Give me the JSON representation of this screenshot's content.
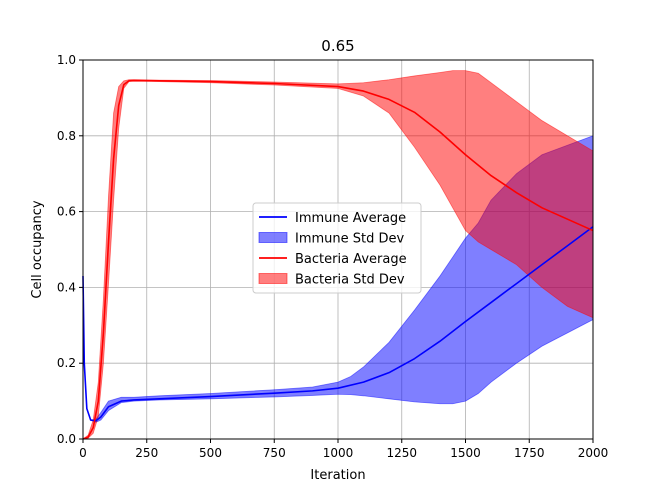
{
  "chart_data": {
    "type": "line",
    "title": "0.65",
    "xlabel": "Iteration",
    "ylabel": "Cell occupancy",
    "xlim": [
      0,
      2000
    ],
    "ylim": [
      0,
      1.0
    ],
    "xticks": [
      0,
      250,
      500,
      750,
      1000,
      1250,
      1500,
      1750,
      2000
    ],
    "yticks": [
      0.0,
      0.2,
      0.4,
      0.6,
      0.8,
      1.0
    ],
    "xtick_labels": [
      "0",
      "250",
      "500",
      "750",
      "1000",
      "1250",
      "1500",
      "1750",
      "2000"
    ],
    "ytick_labels": [
      "0.0",
      "0.2",
      "0.4",
      "0.6",
      "0.8",
      "1.0"
    ],
    "grid": true,
    "legend_position": "center-right",
    "legend": [
      "Immune Average",
      "Immune Std Dev",
      "Bacteria Average",
      "Bacteria Std Dev"
    ],
    "series": [
      {
        "name": "Immune Average",
        "kind": "line",
        "color": "#0000ff",
        "x": [
          0,
          5,
          15,
          30,
          50,
          70,
          100,
          150,
          200,
          300,
          500,
          750,
          900,
          1000,
          1100,
          1200,
          1300,
          1400,
          1500,
          1600,
          1700,
          1800,
          1900,
          2000
        ],
        "y": [
          0.43,
          0.2,
          0.08,
          0.05,
          0.048,
          0.058,
          0.085,
          0.1,
          0.103,
          0.106,
          0.112,
          0.121,
          0.127,
          0.134,
          0.15,
          0.175,
          0.212,
          0.258,
          0.31,
          0.36,
          0.41,
          0.46,
          0.51,
          0.56
        ]
      },
      {
        "name": "Immune Std Dev",
        "kind": "band",
        "color": "#0000ff",
        "x": [
          0,
          5,
          15,
          30,
          50,
          70,
          100,
          150,
          200,
          300,
          500,
          750,
          900,
          1000,
          1050,
          1100,
          1200,
          1300,
          1400,
          1450,
          1500,
          1550,
          1600,
          1700,
          1800,
          1900,
          2000
        ],
        "lower": [
          0.43,
          0.2,
          0.08,
          0.05,
          0.044,
          0.05,
          0.075,
          0.096,
          0.1,
          0.103,
          0.106,
          0.111,
          0.115,
          0.118,
          0.117,
          0.114,
          0.106,
          0.098,
          0.093,
          0.093,
          0.1,
          0.12,
          0.15,
          0.2,
          0.245,
          0.28,
          0.315
        ],
        "upper": [
          0.43,
          0.2,
          0.08,
          0.05,
          0.052,
          0.07,
          0.1,
          0.11,
          0.11,
          0.114,
          0.12,
          0.13,
          0.137,
          0.15,
          0.165,
          0.19,
          0.255,
          0.34,
          0.43,
          0.48,
          0.53,
          0.57,
          0.63,
          0.7,
          0.75,
          0.775,
          0.8
        ]
      },
      {
        "name": "Bacteria Average",
        "kind": "line",
        "color": "#ff0000",
        "x": [
          0,
          20,
          40,
          60,
          80,
          100,
          120,
          140,
          160,
          180,
          200,
          300,
          500,
          750,
          1000,
          1100,
          1200,
          1300,
          1400,
          1500,
          1600,
          1700,
          1800,
          1900,
          2000
        ],
        "y": [
          0.0,
          0.005,
          0.03,
          0.1,
          0.28,
          0.52,
          0.74,
          0.88,
          0.935,
          0.945,
          0.946,
          0.945,
          0.943,
          0.938,
          0.93,
          0.918,
          0.896,
          0.862,
          0.81,
          0.75,
          0.695,
          0.65,
          0.61,
          0.58,
          0.55
        ]
      },
      {
        "name": "Bacteria Std Dev",
        "kind": "band",
        "color": "#ff0000",
        "x": [
          0,
          20,
          40,
          60,
          80,
          100,
          120,
          140,
          160,
          180,
          200,
          300,
          500,
          750,
          1000,
          1100,
          1200,
          1300,
          1400,
          1450,
          1500,
          1550,
          1600,
          1700,
          1800,
          1900,
          2000
        ],
        "lower": [
          0.0,
          0.002,
          0.015,
          0.06,
          0.2,
          0.41,
          0.63,
          0.82,
          0.925,
          0.943,
          0.944,
          0.943,
          0.94,
          0.934,
          0.925,
          0.905,
          0.86,
          0.77,
          0.67,
          0.61,
          0.55,
          0.52,
          0.5,
          0.46,
          0.4,
          0.35,
          0.32
        ],
        "upper": [
          0.0,
          0.01,
          0.05,
          0.15,
          0.37,
          0.64,
          0.86,
          0.93,
          0.945,
          0.948,
          0.948,
          0.947,
          0.946,
          0.942,
          0.937,
          0.94,
          0.948,
          0.958,
          0.967,
          0.972,
          0.972,
          0.965,
          0.94,
          0.89,
          0.84,
          0.8,
          0.76
        ]
      }
    ]
  }
}
